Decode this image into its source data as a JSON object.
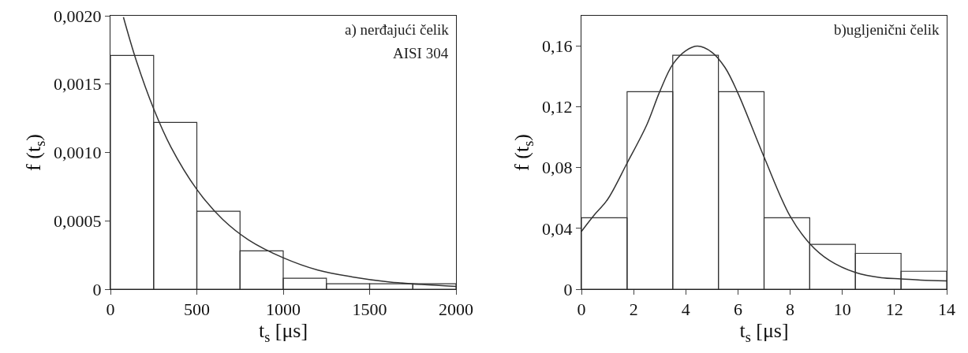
{
  "chart_data": [
    {
      "type": "histogram",
      "bins": [
        0,
        250,
        500,
        750,
        1000,
        1250,
        1500,
        1750,
        2000
      ],
      "values": [
        0.00171,
        0.00122,
        0.00057,
        0.00028,
        8e-05,
        4e-05,
        4e-05,
        4e-05
      ],
      "color": "#333333",
      "series": [
        {
          "type": "line",
          "color": "#333333",
          "x": [
            75,
            150,
            250,
            350,
            500,
            650,
            800,
            1000,
            1200,
            1400,
            1600,
            1800,
            2000
          ],
          "values": [
            0.00199,
            0.00167,
            0.00132,
            0.00104,
            0.00073,
            0.00051,
            0.00036,
            0.00023,
            0.00014,
            9e-05,
            5.5e-05,
            3.4e-05,
            2e-05
          ]
        }
      ],
      "xlabel": "t$_{s}$ [μs]",
      "ylabel": "f (t$_{s}$)",
      "xlim": [
        0,
        2000
      ],
      "ylim": [
        0,
        0.002
      ],
      "xticks": [
        0,
        500,
        1000,
        1500,
        2000
      ],
      "yticks": [
        0,
        {
          "value": 0.0005,
          "label": "0,0005"
        },
        {
          "value": 0.001,
          "label": "0,0010"
        },
        {
          "value": 0.0015,
          "label": "0,0015"
        },
        {
          "value": 0.002,
          "label": "0,0020"
        }
      ],
      "annotations": [
        "a) nerđajući čelik",
        "AISI 304"
      ]
    },
    {
      "type": "histogram",
      "bins": [
        0,
        1.75,
        3.5,
        5.25,
        7,
        8.75,
        10.5,
        12.25,
        14
      ],
      "values": [
        0.047,
        0.13,
        0.154,
        0.13,
        0.047,
        0.0295,
        0.0236,
        0.0118
      ],
      "color": "#333333",
      "series": [
        {
          "type": "line",
          "color": "#333333",
          "x": [
            0,
            0.5,
            1,
            1.75,
            2.5,
            3,
            3.5,
            4,
            4.45,
            5,
            5.5,
            6,
            7,
            8,
            8.75,
            9.5,
            10.5,
            11.5,
            12.25,
            13,
            14
          ],
          "values": [
            0.038,
            0.049,
            0.059,
            0.083,
            0.108,
            0.13,
            0.148,
            0.157,
            0.16,
            0.156,
            0.146,
            0.129,
            0.087,
            0.048,
            0.03,
            0.019,
            0.011,
            0.0075,
            0.0068,
            0.006,
            0.0054
          ]
        }
      ],
      "xlabel": "t$_{s}$ [μs]",
      "ylabel": "f (t$_{s}$)",
      "xlim": [
        0,
        14
      ],
      "ylim": [
        0,
        0.18
      ],
      "xticks": [
        0,
        2,
        4,
        6,
        8,
        10,
        12,
        14
      ],
      "yticks": [
        0,
        {
          "value": 0.04,
          "label": "0,04"
        },
        {
          "value": 0.08,
          "label": "0,08"
        },
        {
          "value": 0.12,
          "label": "0,12"
        },
        {
          "value": 0.16,
          "label": "0,16"
        }
      ],
      "annotations": [
        "b)ugljenični čelik"
      ]
    }
  ]
}
